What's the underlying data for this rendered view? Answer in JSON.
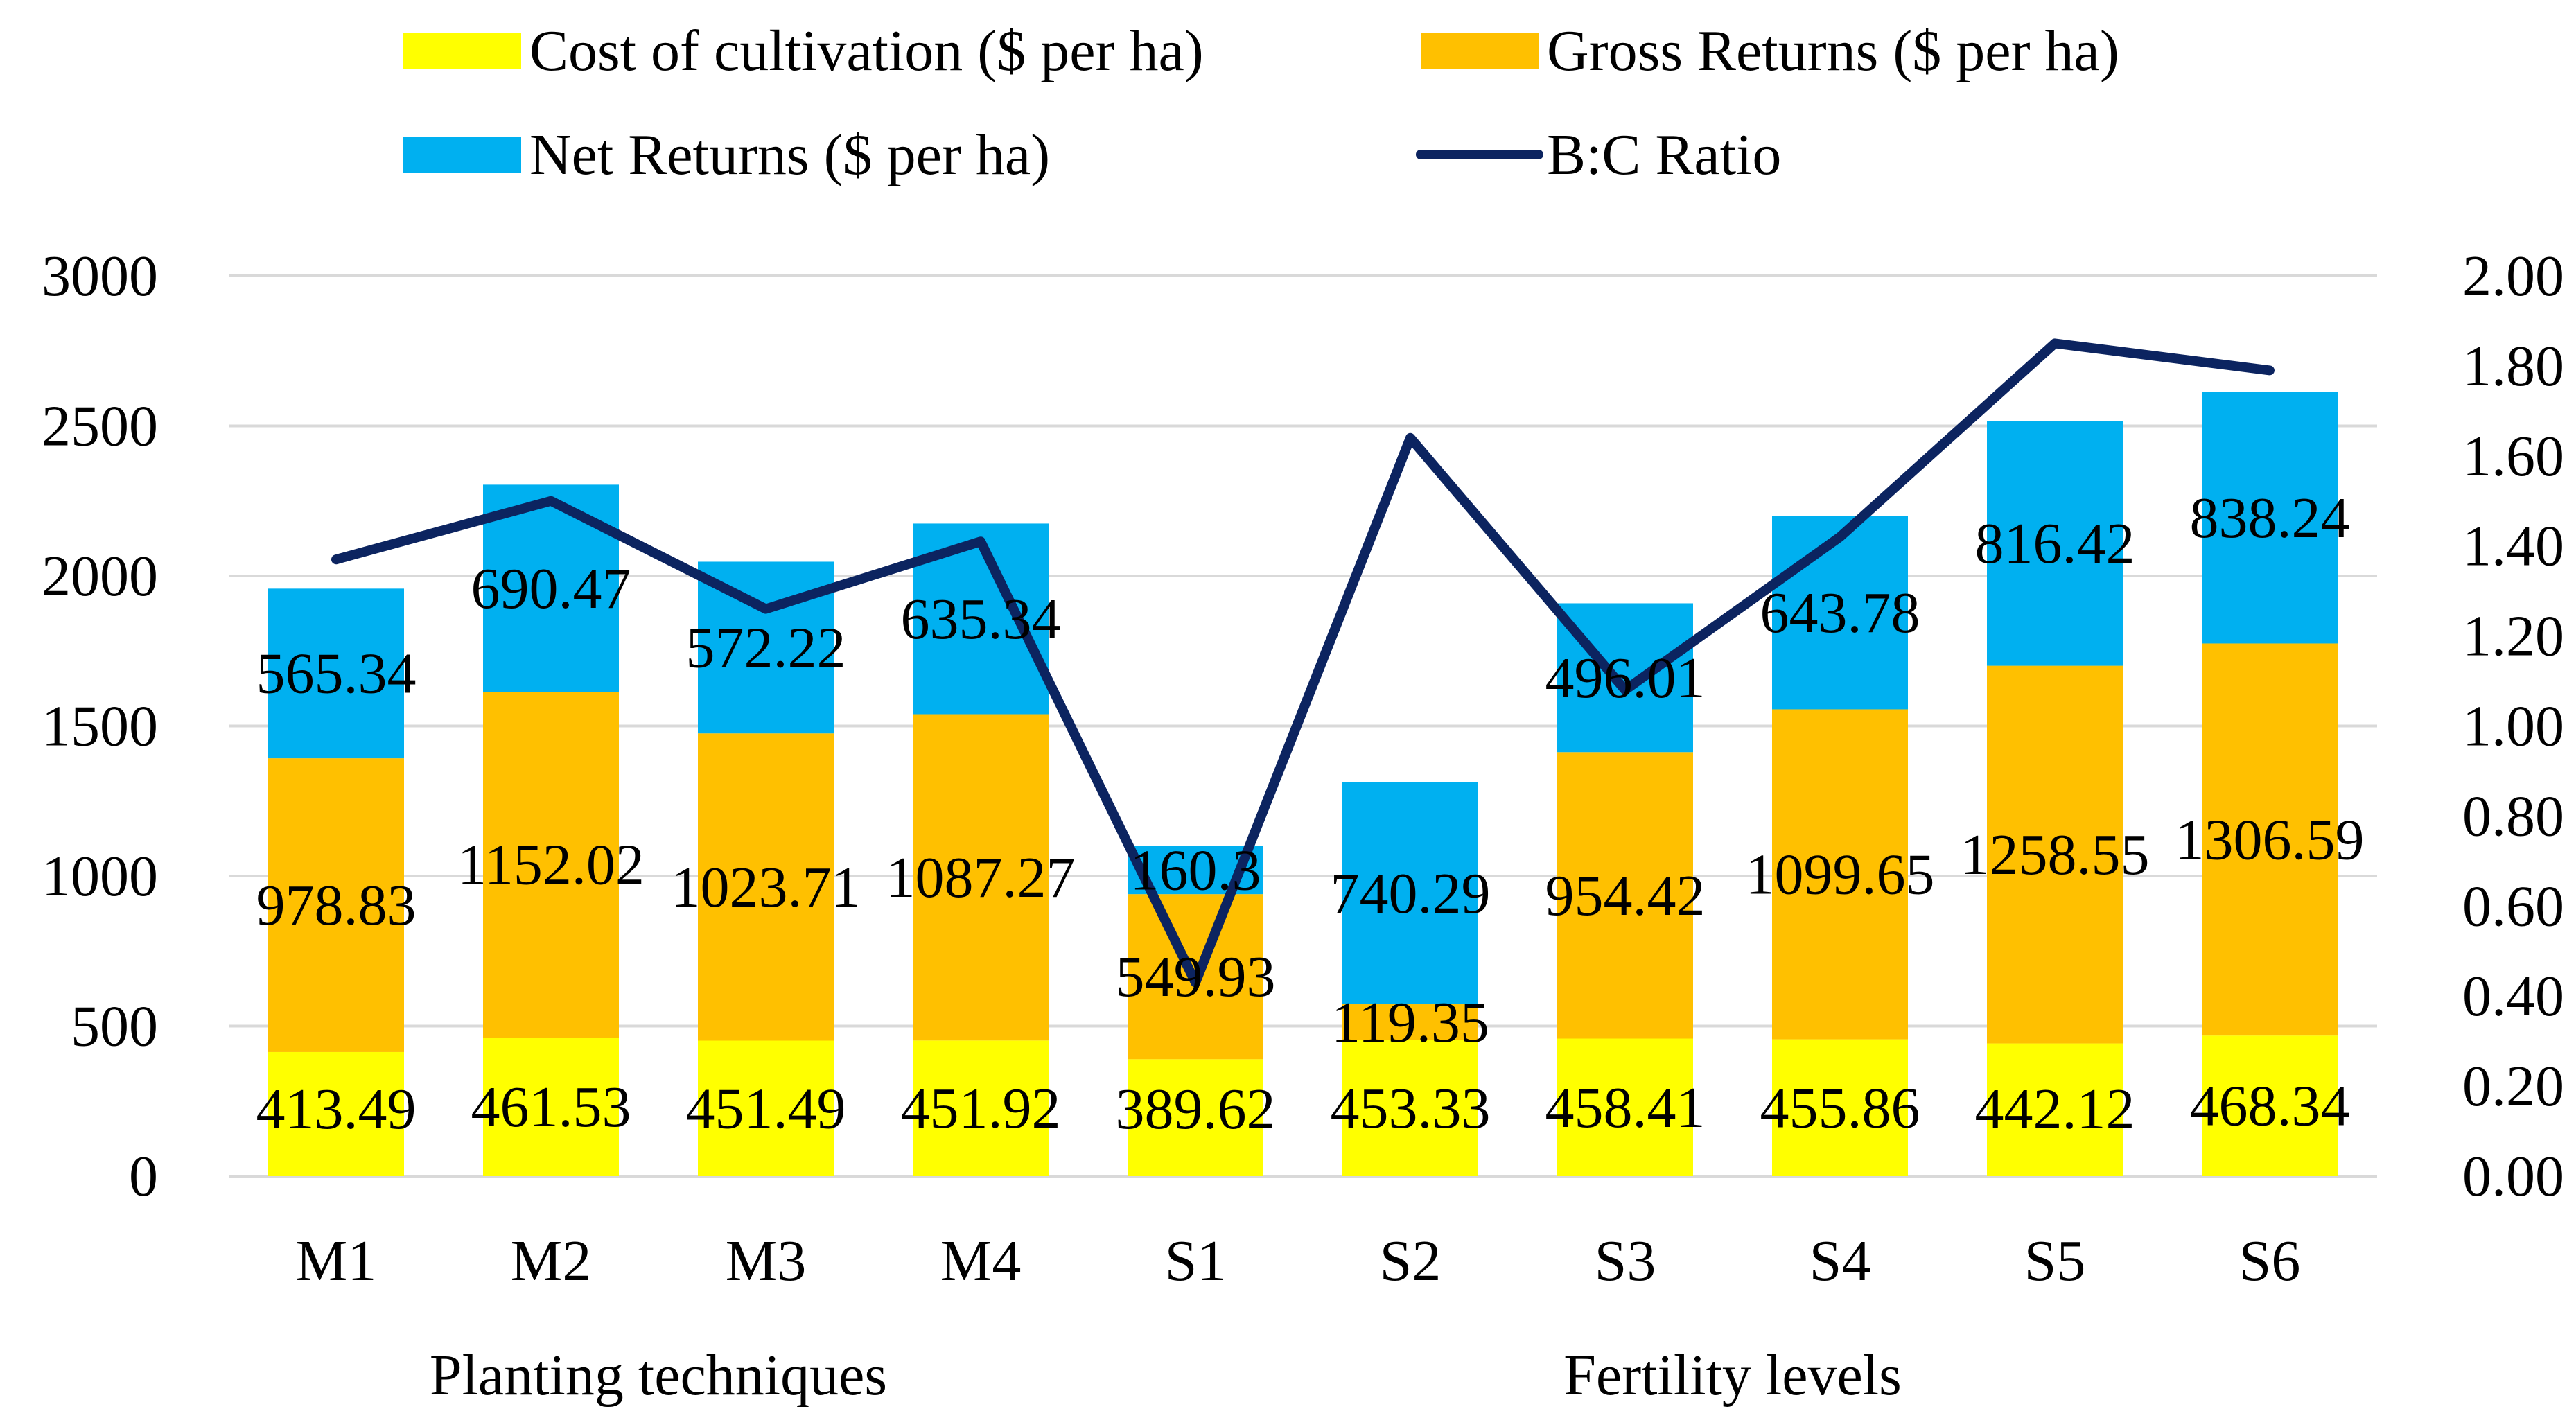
{
  "chart_data": {
    "type": "bar",
    "stacked": true,
    "categories": [
      "M1",
      "M2",
      "M3",
      "M4",
      "S1",
      "S2",
      "S3",
      "S4",
      "S5",
      "S6"
    ],
    "groups": [
      {
        "label": "Planting techniques",
        "categories": [
          "M1",
          "M2",
          "M3",
          "M4"
        ]
      },
      {
        "label": "Fertility levels",
        "categories": [
          "S1",
          "S2",
          "S3",
          "S4",
          "S5",
          "S6"
        ]
      }
    ],
    "series": [
      {
        "name": "Cost of cultivation ($ per ha)",
        "type": "bar",
        "axis": "left",
        "color": "#FFFF00",
        "values": [
          413.49,
          461.53,
          451.49,
          451.92,
          389.62,
          453.33,
          458.41,
          455.86,
          442.12,
          468.34
        ]
      },
      {
        "name": "Gross Returns ($ per ha)",
        "type": "bar",
        "axis": "left",
        "color": "#FFC000",
        "values": [
          978.83,
          1152.02,
          1023.71,
          1087.27,
          549.93,
          119.35,
          954.42,
          1099.65,
          1258.55,
          1306.59
        ]
      },
      {
        "name": "Net Returns ($ per ha)",
        "type": "bar",
        "axis": "left",
        "color": "#00B0F0",
        "values": [
          565.34,
          690.47,
          572.22,
          635.34,
          160.3,
          740.29,
          496.01,
          643.78,
          816.42,
          838.24
        ]
      },
      {
        "name": "B:C Ratio",
        "type": "line",
        "axis": "right",
        "color": "#0C2460",
        "values": [
          1.37,
          1.5,
          1.26,
          1.41,
          0.43,
          1.64,
          1.08,
          1.42,
          1.85,
          1.79
        ]
      }
    ],
    "data_label_text": [
      [
        "413.49",
        "461.53",
        "451.49",
        "451.92",
        "389.62",
        "453.33",
        "458.41",
        "455.86",
        "442.12",
        "468.34"
      ],
      [
        "978.83",
        "1152.02",
        "1023.71",
        "1087.27",
        "549.93",
        "119.35",
        "954.42",
        "1099.65",
        "1258.55",
        "1306.59"
      ],
      [
        "565.34",
        "690.47",
        "572.22",
        "635.34",
        "160.3",
        "740.29",
        "496.01",
        "643.78",
        "816.42",
        "838.24"
      ]
    ],
    "y_left": {
      "min": 0,
      "max": 3000,
      "step": 500,
      "tick_labels": [
        "0",
        "500",
        "1000",
        "1500",
        "2000",
        "2500",
        "3000"
      ]
    },
    "y_right": {
      "min": 0,
      "max": 2,
      "step": 0.2,
      "tick_labels": [
        "0.00",
        "0.20",
        "0.40",
        "0.60",
        "0.80",
        "1.00",
        "1.20",
        "1.40",
        "1.60",
        "1.80",
        "2.00"
      ]
    },
    "grid": true,
    "legend_position": "top",
    "title": "",
    "xlabel": "",
    "ylabel": ""
  }
}
